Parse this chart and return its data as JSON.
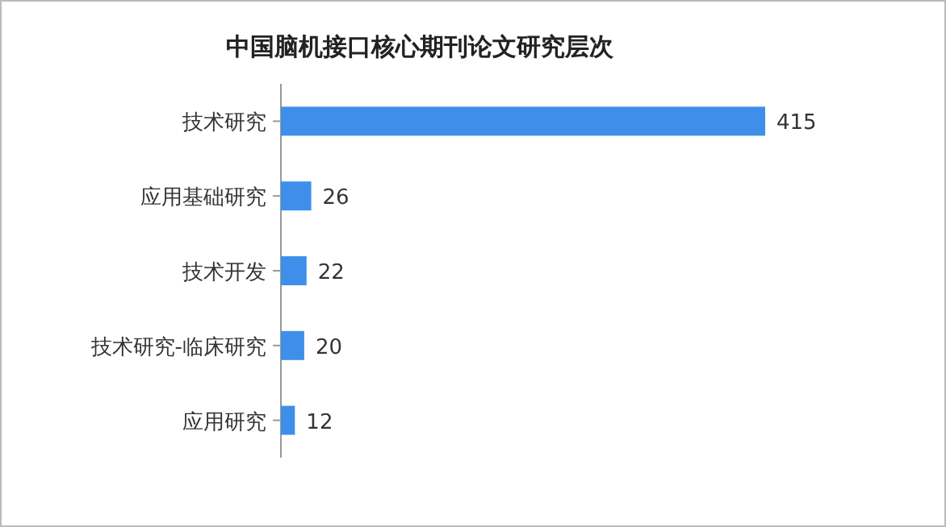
{
  "chart_data": {
    "type": "bar",
    "orientation": "horizontal",
    "title": "中国脑机接口核心期刊论文研究层次",
    "categories": [
      "技术研究",
      "应用基础研究",
      "技术开发",
      "技术研究-临床研究",
      "应用研究"
    ],
    "values": [
      415,
      26,
      22,
      20,
      12
    ],
    "color": "#3f8fea",
    "data_labels": true,
    "tick_labels": "y"
  }
}
